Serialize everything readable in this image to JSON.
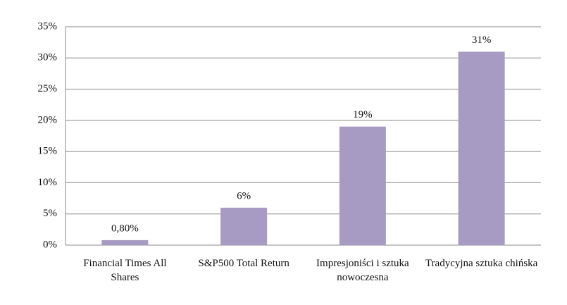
{
  "chart_data": {
    "type": "bar",
    "categories": [
      "Financial Times All Shares",
      "S&P500 Total Return",
      "Impresjoniści i sztuka nowoczesna",
      "Tradycyjna sztuka chińska"
    ],
    "values": [
      0.8,
      6,
      19,
      31
    ],
    "value_labels": [
      "0,80%",
      "6%",
      "19%",
      "31%"
    ],
    "color": "#a79bc4",
    "ylim": [
      0,
      35
    ],
    "yticks": [
      {
        "value": 0,
        "label": "0%"
      },
      {
        "value": 5,
        "label": "5%"
      },
      {
        "value": 10,
        "label": "10%"
      },
      {
        "value": 15,
        "label": "15%"
      },
      {
        "value": 20,
        "label": "20%"
      },
      {
        "value": 25,
        "label": "25%"
      },
      {
        "value": 30,
        "label": "30%"
      },
      {
        "value": 35,
        "label": "35%"
      }
    ],
    "grid": true
  }
}
